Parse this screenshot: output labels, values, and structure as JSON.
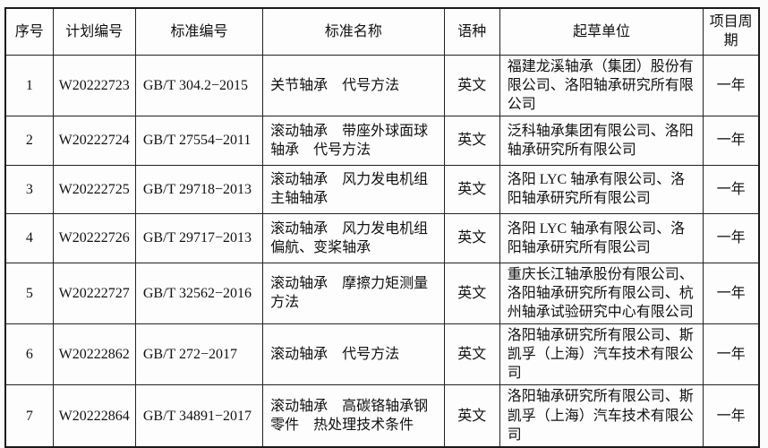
{
  "table": {
    "headers": {
      "seq": "序号",
      "plan_no": "计划编号",
      "std_no": "标准编号",
      "std_name": "标准名称",
      "language": "语种",
      "org": "起草单位",
      "cycle": "项目周期"
    },
    "rows": [
      {
        "seq": "1",
        "plan_no": "W20222723",
        "std_no": "GB/T 304.2−2015",
        "std_name": "关节轴承　代号方法",
        "language": "英文",
        "org": "福建龙溪轴承（集团）股份有限公司、洛阳轴承研究所有限公司",
        "cycle": "一年"
      },
      {
        "seq": "2",
        "plan_no": "W20222724",
        "std_no": "GB/T 27554−2011",
        "std_name": "滚动轴承　带座外球面球轴承　代号方法",
        "language": "英文",
        "org": "泛科轴承集团有限公司、洛阳轴承研究所有限公司",
        "cycle": "一年"
      },
      {
        "seq": "3",
        "plan_no": "W20222725",
        "std_no": "GB/T 29718−2013",
        "std_name": "滚动轴承　风力发电机组主轴轴承",
        "language": "英文",
        "org": "洛阳 LYC 轴承有限公司、洛阳轴承研究所有限公司",
        "cycle": "一年"
      },
      {
        "seq": "4",
        "plan_no": "W20222726",
        "std_no": "GB/T 29717−2013",
        "std_name": "滚动轴承　风力发电机组偏航、变桨轴承",
        "language": "英文",
        "org": "洛阳 LYC 轴承有限公司、洛阳轴承研究所有限公司",
        "cycle": "一年"
      },
      {
        "seq": "5",
        "plan_no": "W20222727",
        "std_no": "GB/T 32562−2016",
        "std_name": "滚动轴承　摩擦力矩测量方法",
        "language": "英文",
        "org": "重庆长江轴承股份有限公司、洛阳轴承研究所有限公司、杭州轴承试验研究中心有限公司",
        "cycle": "一年"
      },
      {
        "seq": "6",
        "plan_no": "W20222862",
        "std_no": "GB/T 272−2017",
        "std_name": "滚动轴承　代号方法",
        "language": "英文",
        "org": "洛阳轴承研究所有限公司、斯凯孚（上海）汽车技术有限公司",
        "cycle": "一年"
      },
      {
        "seq": "7",
        "plan_no": "W20222864",
        "std_no": "GB/T 34891−2017",
        "std_name": "滚动轴承　高碳铬轴承钢零件　热处理技术条件",
        "language": "英文",
        "org": "洛阳轴承研究所有限公司、斯凯孚（上海）汽车技术有限公司",
        "cycle": "一年"
      }
    ]
  }
}
